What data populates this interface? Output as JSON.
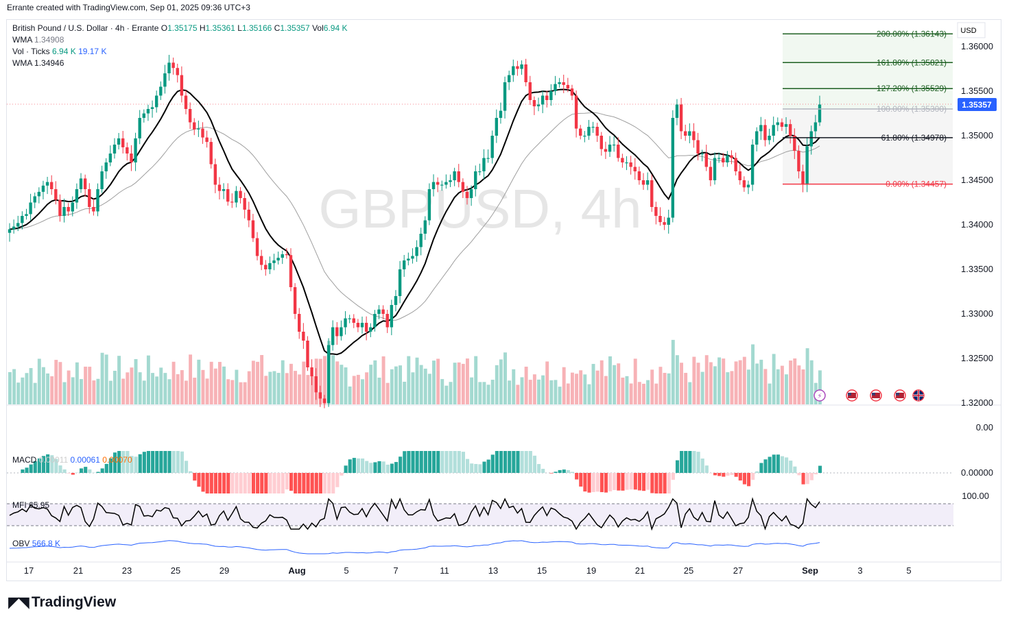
{
  "header": {
    "text": "Errante created with TradingView.com, Sep 01, 2025 09:36 UTC+3"
  },
  "legend": {
    "symbol": "British Pound / U.S. Dollar · 4h · Errante",
    "o_label": "O",
    "o": "1.35175",
    "h_label": "H",
    "h": "1.35361",
    "l_label": "L",
    "l": "1.35166",
    "c_label": "C",
    "c": "1.35357",
    "vol_label": "Vol",
    "vol": "6.94 K",
    "wma1_label": "WMA",
    "wma1": "1.34908",
    "voltick_label": "Vol · Ticks",
    "voltick_a": "6.94 K",
    "voltick_b": "19.17 K",
    "wma2_label": "WMA",
    "wma2": "1.34946"
  },
  "watermark": "GBPUSD, 4h",
  "currency": "USD",
  "last_price": "1.35357",
  "brand": "TradingView",
  "indicators": {
    "macd_label": "MACD",
    "macd_a": "0.00011",
    "macd_b": "0.00061",
    "macd_c": "0.00070",
    "mfi_label": "MFI",
    "mfi": "65.95",
    "obv_label": "OBV",
    "obv": "566.8 K"
  },
  "fib_labels": [
    {
      "pct": "200.00%",
      "price": "(1.36143)",
      "value": 1.36143,
      "color": "#1b5e20"
    },
    {
      "pct": "161.80%",
      "price": "(1.35821)",
      "value": 1.35821,
      "color": "#1b5e20"
    },
    {
      "pct": "127.20%",
      "price": "(1.35529)",
      "value": 1.35529,
      "color": "#1b5e20"
    },
    {
      "pct": "100.00%",
      "price": "(1.35300)",
      "value": 1.353,
      "color": "#b2b5be"
    },
    {
      "pct": "61.80%",
      "price": "(1.34978)",
      "value": 1.34978,
      "color": "#131722"
    },
    {
      "pct": "0.00%",
      "price": "(1.34457)",
      "value": 1.34457,
      "color": "#f23645"
    }
  ],
  "price_axis": [
    "1.36000",
    "1.35500",
    "1.35000",
    "1.34500",
    "1.34000",
    "1.33500",
    "1.33000",
    "1.32500",
    "1.32000"
  ],
  "macd_axis": [
    "0.00",
    "0.00000"
  ],
  "mfi_axis": [
    "100.00"
  ],
  "x_axis": [
    "17",
    "21",
    "23",
    "25",
    "29",
    "Aug",
    "5",
    "7",
    "11",
    "13",
    "15",
    "19",
    "21",
    "25",
    "27",
    "Sep",
    "3",
    "5"
  ],
  "colors": {
    "up": "#089981",
    "down": "#f23645",
    "wma_fast": "#000000",
    "wma_slow": "#9e9e9e",
    "accent": "#2962ff"
  },
  "chart_data": {
    "type": "candlestick",
    "title": "GBPUSD, 4h",
    "symbol": "GBPUSD",
    "timeframe": "4h",
    "ylim": [
      1.3195,
      1.3625
    ],
    "x_ticks": [
      "17",
      "21",
      "23",
      "25",
      "29",
      "Aug",
      "5",
      "7",
      "11",
      "13",
      "15",
      "19",
      "21",
      "25",
      "27",
      "Sep",
      "3",
      "5"
    ],
    "series": [
      {
        "name": "WMA",
        "last": 1.34908
      },
      {
        "name": "WMA",
        "last": 1.34946
      }
    ],
    "closes": [
      1.3395,
      1.3398,
      1.3402,
      1.341,
      1.3412,
      1.3425,
      1.3432,
      1.3437,
      1.3444,
      1.3448,
      1.344,
      1.3428,
      1.341,
      1.342,
      1.3415,
      1.3425,
      1.344,
      1.3452,
      1.344,
      1.342,
      1.3415,
      1.344,
      1.346,
      1.347,
      1.348,
      1.349,
      1.3497,
      1.3487,
      1.348,
      1.347,
      1.3497,
      1.352,
      1.3525,
      1.353,
      1.3532,
      1.3545,
      1.3555,
      1.357,
      1.3582,
      1.3576,
      1.3568,
      1.3545,
      1.353,
      1.3515,
      1.3507,
      1.3508,
      1.3498,
      1.3493,
      1.3468,
      1.3445,
      1.3438,
      1.344,
      1.3426,
      1.3425,
      1.3438,
      1.343,
      1.3417,
      1.3405,
      1.3385,
      1.3365,
      1.3355,
      1.335,
      1.3357,
      1.336,
      1.3363,
      1.3367,
      1.3366,
      1.333,
      1.33,
      1.328,
      1.327,
      1.324,
      1.323,
      1.3212,
      1.3205,
      1.32,
      1.3265,
      1.3285,
      1.3275,
      1.3285,
      1.3295,
      1.3295,
      1.329,
      1.3285,
      1.329,
      1.328,
      1.3285,
      1.33,
      1.3305,
      1.33,
      1.3285,
      1.331,
      1.332,
      1.335,
      1.336,
      1.3362,
      1.3365,
      1.3375,
      1.339,
      1.3405,
      1.344,
      1.3448,
      1.3445,
      1.3445,
      1.3448,
      1.345,
      1.346,
      1.3448,
      1.3437,
      1.343,
      1.344,
      1.346,
      1.346,
      1.3475,
      1.3475,
      1.35,
      1.352,
      1.3528,
      1.356,
      1.3568,
      1.3578,
      1.3575,
      1.358,
      1.356,
      1.354,
      1.3533,
      1.3535,
      1.3545,
      1.354,
      1.355,
      1.3558,
      1.356,
      1.3557,
      1.3553,
      1.3545,
      1.3508,
      1.35,
      1.35,
      1.351,
      1.351,
      1.35,
      1.3485,
      1.3482,
      1.349,
      1.349,
      1.3475,
      1.347,
      1.347,
      1.3465,
      1.346,
      1.345,
      1.3445,
      1.345,
      1.342,
      1.341,
      1.3403,
      1.34,
      1.3408,
      1.352,
      1.3535,
      1.3505,
      1.35,
      1.3505,
      1.3495,
      1.348,
      1.348,
      1.3465,
      1.345,
      1.3475,
      1.3475,
      1.347,
      1.3478,
      1.3475,
      1.346,
      1.345,
      1.3442,
      1.3445,
      1.349,
      1.3505,
      1.3512,
      1.3495,
      1.35,
      1.3512,
      1.3515,
      1.351,
      1.3513,
      1.35,
      1.3483,
      1.346,
      1.3445,
      1.3488,
      1.3505,
      1.3515,
      1.3535
    ],
    "volume_unit": "ticks"
  }
}
